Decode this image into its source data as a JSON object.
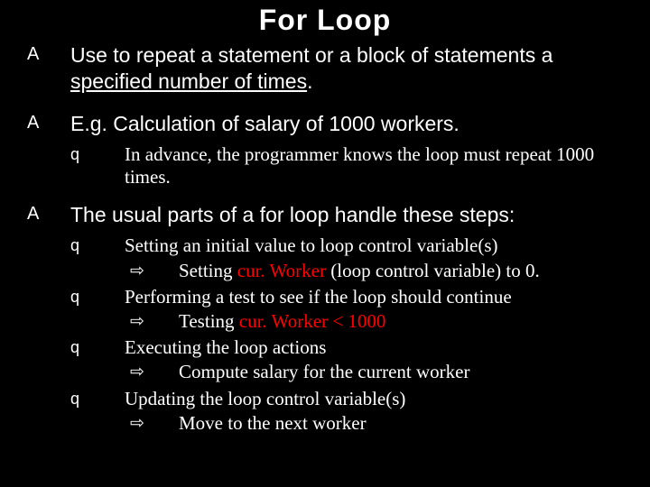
{
  "colors": {
    "bg": "#000000",
    "text": "#ffffff",
    "highlight": "#ff0000"
  },
  "title": "For Loop",
  "markers": {
    "l1": "A",
    "l2": "q",
    "l3": "⇨"
  },
  "b1": {
    "pre": "Use to repeat a statement or a block of statements a ",
    "under": "specified number of times",
    "post": "."
  },
  "b2": {
    "text": "E.g. Calculation of salary of 1000 workers.",
    "sub1": "In advance, the programmer knows the loop must repeat 1000 times."
  },
  "b3": {
    "text": "The usual parts of a for loop handle these steps:",
    "s1": {
      "line": "Setting an initial value to loop control variable(s)",
      "arrow_pre": "Setting ",
      "arrow_hl": "cur. Worker",
      "arrow_post": " (loop control variable) to 0."
    },
    "s2": {
      "line": "Performing a test to see if the loop should continue",
      "arrow_pre": "Testing ",
      "arrow_hl": "cur. Worker < 1000",
      "arrow_post": ""
    },
    "s3": {
      "line": "Executing the loop actions",
      "arrow": "Compute salary for the current worker"
    },
    "s4": {
      "line": "Updating the loop control variable(s)",
      "arrow": "Move to the next worker"
    }
  }
}
